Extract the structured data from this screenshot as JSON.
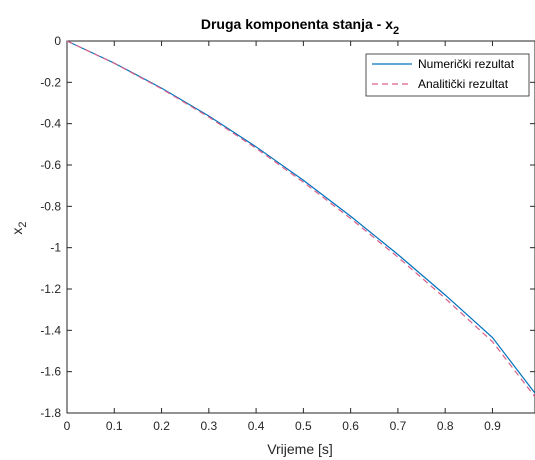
{
  "chart_data": {
    "type": "line",
    "title_main": "Druga komponenta stanja - x",
    "title_sub": "2",
    "xlabel": "Vrijeme [s]",
    "ylabel_main": "x",
    "ylabel_sub": "2",
    "xlim": [
      0,
      0.99
    ],
    "ylim": [
      -1.8,
      0
    ],
    "xticks": [
      0,
      0.1,
      0.2,
      0.3,
      0.4,
      0.5,
      0.6,
      0.7,
      0.8,
      0.9
    ],
    "xtick_labels": [
      "0",
      "0.1",
      "0.2",
      "0.3",
      "0.4",
      "0.5",
      "0.6",
      "0.7",
      "0.8",
      "0.9"
    ],
    "yticks": [
      0,
      -0.2,
      -0.4,
      -0.6,
      -0.8,
      -1,
      -1.2,
      -1.4,
      -1.6,
      -1.8
    ],
    "ytick_labels": [
      "0",
      "-0.2",
      "-0.4",
      "-0.6",
      "-0.8",
      "-1",
      "-1.2",
      "-1.4",
      "-1.6",
      "-1.8"
    ],
    "grid": false,
    "legend_position": "top-right",
    "series": [
      {
        "name": "Numerički rezultat",
        "color": "#0072BD",
        "style": "solid",
        "x": [
          0,
          0.1,
          0.2,
          0.3,
          0.4,
          0.5,
          0.6,
          0.7,
          0.8,
          0.9,
          0.99
        ],
        "y": [
          0,
          -0.107,
          -0.228,
          -0.363,
          -0.512,
          -0.674,
          -0.848,
          -1.033,
          -1.229,
          -1.435,
          -1.704
        ]
      },
      {
        "name": "Analitički rezultat",
        "color": "#D95F8A",
        "style": "dashed",
        "x": [
          0,
          0.1,
          0.2,
          0.3,
          0.4,
          0.5,
          0.6,
          0.7,
          0.8,
          0.9,
          0.99
        ],
        "y": [
          0,
          -0.108,
          -0.231,
          -0.368,
          -0.519,
          -0.683,
          -0.859,
          -1.046,
          -1.245,
          -1.455,
          -1.722
        ]
      }
    ]
  }
}
